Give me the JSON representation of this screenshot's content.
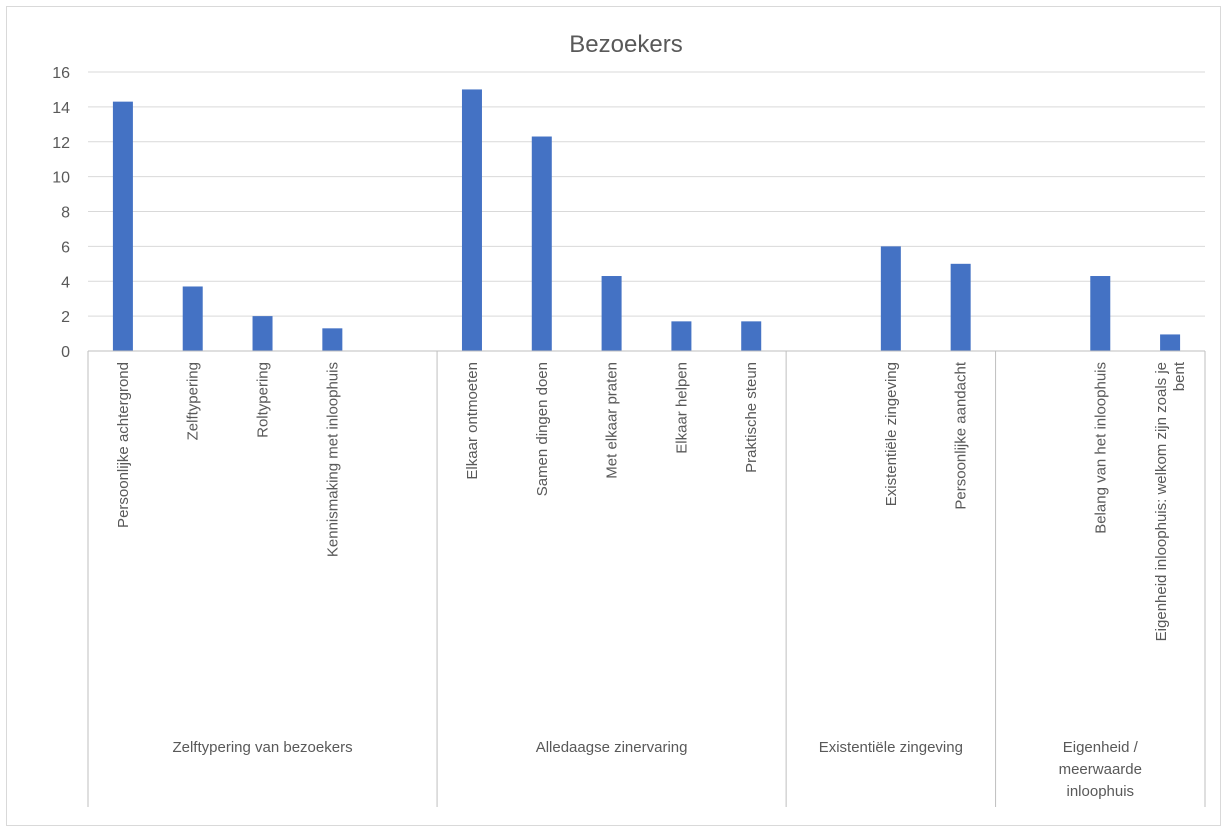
{
  "chart_data": {
    "type": "bar",
    "title": "Bezoekers",
    "xlabel": "",
    "ylabel": "",
    "ylim": [
      0,
      16
    ],
    "yticks": [
      0,
      2,
      4,
      6,
      8,
      10,
      12,
      14,
      16
    ],
    "grid": true,
    "legend": "none",
    "bar_color": "#4472C4",
    "groups": [
      {
        "label": "Zelftypering van bezoekers",
        "label_lines": [
          "Zelftypering van bezoekers"
        ]
      },
      {
        "label": "Alledaagse zinervaring",
        "label_lines": [
          "Alledaagse zinervaring"
        ]
      },
      {
        "label": "Existentiële zingeving",
        "label_lines": [
          "Existentiële zingeving"
        ]
      },
      {
        "label": "Eigenheid / meerwaarde inloophuis",
        "label_lines": [
          "Eigenheid /",
          "meerwaarde",
          "inloophuis"
        ]
      }
    ],
    "categories": [
      {
        "label": "Persoonlijke achtergrond",
        "group": 0,
        "value": 14.3,
        "lines": [
          "Persoonlijke achtergrond"
        ]
      },
      {
        "label": "Zelftypering",
        "group": 0,
        "value": 3.7,
        "lines": [
          "Zelftypering"
        ]
      },
      {
        "label": "Roltypering",
        "group": 0,
        "value": 2.0,
        "lines": [
          "Roltypering"
        ]
      },
      {
        "label": "Kennismaking met inloophuis",
        "group": 0,
        "value": 1.3,
        "lines": [
          "Kennismaking met inloophuis"
        ]
      },
      {
        "label": "",
        "group": 0,
        "value": null,
        "lines": []
      },
      {
        "label": "Elkaar ontmoeten",
        "group": 1,
        "value": 15.0,
        "lines": [
          "Elkaar ontmoeten"
        ]
      },
      {
        "label": "Samen dingen doen",
        "group": 1,
        "value": 12.3,
        "lines": [
          "Samen dingen doen"
        ]
      },
      {
        "label": "Met elkaar praten",
        "group": 1,
        "value": 4.3,
        "lines": [
          "Met elkaar praten"
        ]
      },
      {
        "label": "Elkaar helpen",
        "group": 1,
        "value": 1.7,
        "lines": [
          "Elkaar helpen"
        ]
      },
      {
        "label": "Praktische steun",
        "group": 1,
        "value": 1.7,
        "lines": [
          "Praktische steun"
        ]
      },
      {
        "label": "",
        "group": 2,
        "value": null,
        "lines": []
      },
      {
        "label": "Existentiële zingeving",
        "group": 2,
        "value": 6.0,
        "lines": [
          "Existentiële zingeving"
        ]
      },
      {
        "label": "Persoonlijke aandacht",
        "group": 2,
        "value": 5.0,
        "lines": [
          "Persoonlijke aandacht"
        ]
      },
      {
        "label": "",
        "group": 3,
        "value": null,
        "lines": []
      },
      {
        "label": "Belang van het inloophuis",
        "group": 3,
        "value": 4.3,
        "lines": [
          "Belang van het inloophuis"
        ]
      },
      {
        "label": "Eigenheid inloophuis: welkom zijn zoals je bent",
        "group": 3,
        "value": 0.95,
        "lines": [
          "Eigenheid inloophuis: welkom zijn zoals je",
          "bent"
        ]
      }
    ]
  }
}
